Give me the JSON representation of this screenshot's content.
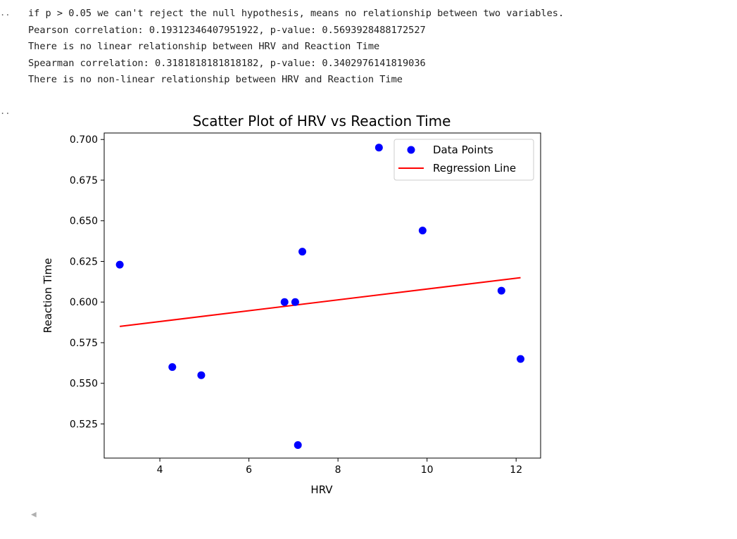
{
  "output_text": [
    "if p > 0.05 we can't reject the null hypothesis, means no relationship between two variables.",
    "Pearson correlation: 0.19312346407951922, p-value: 0.5693928488172527",
    "There is no linear relationship between HRV and Reaction Time",
    "Spearman correlation: 0.3181818181818182, p-value: 0.3402976141819036",
    "There is no non-linear relationship between HRV and Reaction Time"
  ],
  "gutter": {
    "first": "..",
    "second": ".."
  },
  "colors": {
    "points": "#0000ff",
    "regression": "#ff0000",
    "axis": "#000000"
  },
  "chart_data": {
    "type": "scatter",
    "title": "Scatter Plot of HRV vs Reaction Time",
    "xlabel": "HRV",
    "ylabel": "Reaction Time",
    "xlim": [
      2.75,
      12.55
    ],
    "ylim": [
      0.504,
      0.704
    ],
    "xticks": [
      4,
      6,
      8,
      10,
      12
    ],
    "xtick_labels": [
      "4",
      "6",
      "8",
      "10",
      "12"
    ],
    "yticks": [
      0.525,
      0.55,
      0.575,
      0.6,
      0.625,
      0.65,
      0.675,
      0.7
    ],
    "ytick_labels": [
      "0.525",
      "0.550",
      "0.575",
      "0.600",
      "0.625",
      "0.650",
      "0.675",
      "0.700"
    ],
    "grid": false,
    "legend_position": "upper right",
    "series": [
      {
        "name": "Data Points",
        "kind": "scatter",
        "x": [
          3.1,
          4.28,
          4.93,
          6.8,
          7.04,
          7.1,
          7.2,
          8.92,
          9.9,
          11.67,
          12.1
        ],
        "y": [
          0.623,
          0.56,
          0.555,
          0.6,
          0.6,
          0.512,
          0.631,
          0.695,
          0.644,
          0.607,
          0.565
        ]
      },
      {
        "name": "Regression Line",
        "kind": "line",
        "x": [
          3.1,
          12.1
        ],
        "y": [
          0.585,
          0.615
        ]
      }
    ]
  }
}
